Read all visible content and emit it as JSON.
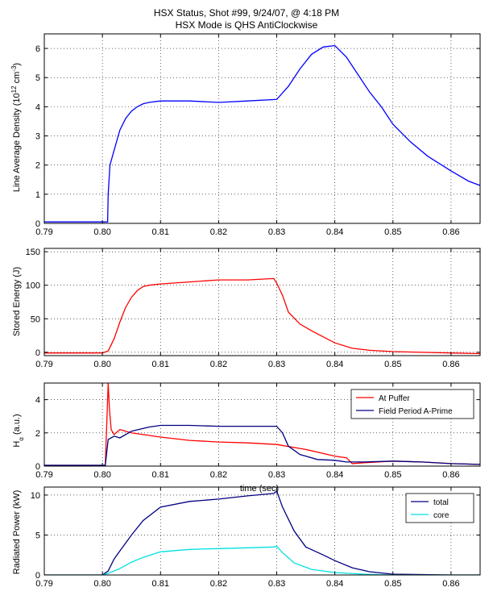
{
  "title_line1": "HSX Status, Shot #99, 9/24/07, @ 4:18 PM",
  "title_line2": "HSX Mode is QHS AntiClockwise",
  "chart_data": [
    {
      "type": "line",
      "ylabel": "Line Average Density (10^12 cm^-3)",
      "xlim": [
        0.79,
        0.865
      ],
      "ylim": [
        0,
        6.5
      ],
      "xticks": [
        0.79,
        0.8,
        0.81,
        0.82,
        0.83,
        0.84,
        0.85,
        0.86
      ],
      "yticks": [
        0,
        1,
        2,
        3,
        4,
        5,
        6
      ],
      "grid": true,
      "series": [
        {
          "color": "#0000ff",
          "x": [
            0.79,
            0.8009,
            0.801,
            0.8013,
            0.802,
            0.803,
            0.804,
            0.805,
            0.806,
            0.807,
            0.808,
            0.81,
            0.815,
            0.82,
            0.825,
            0.83,
            0.832,
            0.834,
            0.836,
            0.838,
            0.84,
            0.842,
            0.844,
            0.846,
            0.848,
            0.85,
            0.853,
            0.856,
            0.86,
            0.863,
            0.865
          ],
          "y": [
            0.05,
            0.05,
            1.0,
            2.0,
            2.5,
            3.2,
            3.6,
            3.85,
            4.0,
            4.1,
            4.15,
            4.2,
            4.2,
            4.15,
            4.2,
            4.25,
            4.7,
            5.3,
            5.8,
            6.05,
            6.1,
            5.7,
            5.1,
            4.5,
            4.0,
            3.4,
            2.8,
            2.3,
            1.8,
            1.45,
            1.3
          ]
        }
      ]
    },
    {
      "type": "line",
      "ylabel": "Stored Energy (J)",
      "xlim": [
        0.79,
        0.865
      ],
      "ylim": [
        -5,
        155
      ],
      "xticks": [
        0.79,
        0.8,
        0.81,
        0.82,
        0.83,
        0.84,
        0.85,
        0.86
      ],
      "yticks": [
        0,
        50,
        100,
        150
      ],
      "grid": true,
      "series": [
        {
          "color": "#ff0000",
          "x": [
            0.79,
            0.8,
            0.801,
            0.802,
            0.803,
            0.804,
            0.805,
            0.806,
            0.807,
            0.808,
            0.81,
            0.815,
            0.82,
            0.825,
            0.8295,
            0.83,
            0.831,
            0.832,
            0.834,
            0.836,
            0.838,
            0.84,
            0.843,
            0.846,
            0.85,
            0.86,
            0.865
          ],
          "y": [
            -1,
            -1,
            2,
            20,
            45,
            67,
            82,
            92,
            98,
            100,
            102,
            105,
            108,
            108,
            110,
            103,
            85,
            60,
            42,
            32,
            23,
            14,
            6,
            3,
            1,
            -1,
            -2
          ]
        }
      ]
    },
    {
      "type": "line",
      "ylabel": "Hα (a.u.)",
      "xlabel": "time (sec)",
      "xlim": [
        0.79,
        0.865
      ],
      "ylim": [
        0,
        5
      ],
      "xticks": [
        0.79,
        0.8,
        0.81,
        0.82,
        0.83,
        0.84,
        0.85,
        0.86
      ],
      "yticks": [
        0,
        2,
        4
      ],
      "grid": true,
      "legend": "top-right",
      "series": [
        {
          "name": "At Puffer",
          "color": "#ff0000",
          "x": [
            0.79,
            0.8005,
            0.801,
            0.8012,
            0.8015,
            0.802,
            0.803,
            0.805,
            0.81,
            0.815,
            0.82,
            0.825,
            0.83,
            0.835,
            0.84,
            0.842,
            0.843,
            0.845,
            0.85,
            0.855,
            0.86,
            0.865
          ],
          "y": [
            0.05,
            0.05,
            5,
            3.5,
            2.2,
            1.9,
            2.2,
            2.0,
            1.75,
            1.55,
            1.45,
            1.4,
            1.3,
            1.0,
            0.6,
            0.5,
            0.15,
            0.2,
            0.3,
            0.25,
            0.15,
            0.1
          ]
        },
        {
          "name": "Field Period A-Prime",
          "color": "#000080",
          "x": [
            0.79,
            0.8005,
            0.801,
            0.802,
            0.803,
            0.805,
            0.808,
            0.81,
            0.815,
            0.82,
            0.825,
            0.83,
            0.831,
            0.832,
            0.834,
            0.837,
            0.84,
            0.842,
            0.845,
            0.85,
            0.855,
            0.86,
            0.865
          ],
          "y": [
            0.05,
            0.05,
            1.6,
            1.8,
            1.7,
            2.1,
            2.35,
            2.45,
            2.45,
            2.4,
            2.4,
            2.4,
            2.0,
            1.2,
            0.7,
            0.4,
            0.35,
            0.25,
            0.25,
            0.3,
            0.25,
            0.15,
            0.1
          ]
        }
      ]
    },
    {
      "type": "line",
      "ylabel": "Radiated Power (kW)",
      "xlim": [
        0.79,
        0.865
      ],
      "ylim": [
        0,
        11
      ],
      "xticks": [
        0.79,
        0.8,
        0.81,
        0.82,
        0.83,
        0.84,
        0.85,
        0.86
      ],
      "yticks": [
        0,
        5,
        10
      ],
      "grid": true,
      "legend": "top-right",
      "series": [
        {
          "name": "total",
          "color": "#000080",
          "x": [
            0.79,
            0.8,
            0.801,
            0.802,
            0.803,
            0.805,
            0.807,
            0.81,
            0.815,
            0.82,
            0.825,
            0.8295,
            0.83,
            0.831,
            0.833,
            0.835,
            0.838,
            0.84,
            0.843,
            0.846,
            0.85,
            0.86,
            0.865
          ],
          "y": [
            0,
            0,
            0.5,
            2,
            3,
            5,
            6.8,
            8.5,
            9.2,
            9.5,
            9.9,
            10.2,
            10.5,
            8.5,
            5.5,
            3.5,
            2.5,
            1.8,
            0.9,
            0.4,
            0.1,
            0,
            0
          ]
        },
        {
          "name": "core",
          "color": "#00e0e0",
          "x": [
            0.79,
            0.8,
            0.801,
            0.803,
            0.805,
            0.807,
            0.81,
            0.815,
            0.82,
            0.825,
            0.8295,
            0.83,
            0.831,
            0.833,
            0.836,
            0.84,
            0.845,
            0.85,
            0.865
          ],
          "y": [
            0,
            0,
            0.2,
            0.8,
            1.6,
            2.2,
            2.9,
            3.2,
            3.3,
            3.4,
            3.5,
            3.6,
            2.8,
            1.5,
            0.7,
            0.3,
            0.1,
            0,
            0
          ]
        }
      ]
    }
  ]
}
